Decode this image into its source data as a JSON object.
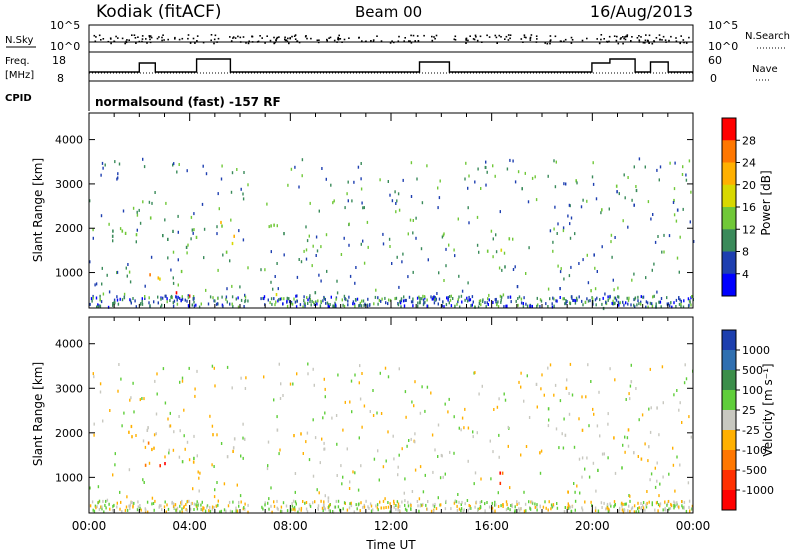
{
  "header": {
    "radar": "Kodiak (fitACF)",
    "beam": "Beam 00",
    "date": "16/Aug/2013"
  },
  "params": {
    "nsky_label": "N.Sky",
    "nsky_ticks": [
      "10^5",
      "10^0"
    ],
    "nsearch_label": "N.Search",
    "freq_label_top": "Freq.",
    "freq_label_unit": "[MHz]",
    "freq_ticks": [
      "18",
      "8"
    ],
    "nave_label": "Nave",
    "nave_ticks": [
      "60",
      "0"
    ],
    "cpid_label": "CPID",
    "cpid_value": "normalsound (fast) -157 RF"
  },
  "chart_data": [
    {
      "type": "heatmap",
      "name": "power",
      "ylabel": "Slant Range [km]",
      "xlabel": "",
      "yticks": [
        "1000",
        "2000",
        "3000",
        "4000"
      ],
      "ylim": [
        200,
        4600
      ],
      "xlim": [
        0,
        24
      ],
      "colorbar_label": "Power [dB]",
      "colorbar_ticks": [
        "28",
        "24",
        "20",
        "16",
        "12",
        "8",
        "4"
      ],
      "colorbar_colors": [
        "#ff0000",
        "#ff7700",
        "#ffb000",
        "#d8d800",
        "#70c838",
        "#3a8a5a",
        "#1e3fb0",
        "#0000ff"
      ],
      "regions": [
        {
          "x0": 0.9,
          "x1": 3.4,
          "y0": 1500,
          "y1": 2300,
          "level": 12
        },
        {
          "x0": 2.2,
          "x1": 3.2,
          "y0": 850,
          "y1": 1400,
          "level": 20
        },
        {
          "x0": 3.2,
          "x1": 4.5,
          "y0": 350,
          "y1": 650,
          "level": 24
        },
        {
          "x0": 3.5,
          "x1": 5.0,
          "y0": 1600,
          "y1": 2100,
          "level": 8
        },
        {
          "x0": 3.6,
          "x1": 4.3,
          "y0": 1000,
          "y1": 1300,
          "level": 12
        },
        {
          "x0": 5.0,
          "x1": 6.3,
          "y0": 1400,
          "y1": 2200,
          "level": 16
        },
        {
          "x0": 7.0,
          "x1": 8.5,
          "y0": 1800,
          "y1": 2200,
          "level": 8
        },
        {
          "x0": 7.0,
          "x1": 9.8,
          "y0": 400,
          "y1": 650,
          "level": 12
        },
        {
          "x0": 15.8,
          "x1": 16.6,
          "y0": 900,
          "y1": 1700,
          "level": 12
        },
        {
          "x0": 16.6,
          "x1": 24.0,
          "y0": 200,
          "y1": 3500,
          "level": 8
        }
      ]
    },
    {
      "type": "heatmap",
      "name": "velocity",
      "ylabel": "Slant Range [km]",
      "xlabel": "Time UT",
      "xticks": [
        "00:00",
        "04:00",
        "08:00",
        "12:00",
        "16:00",
        "20:00",
        "00:00"
      ],
      "yticks": [
        "1000",
        "2000",
        "3000",
        "4000"
      ],
      "ylim": [
        200,
        4600
      ],
      "xlim": [
        0,
        24
      ],
      "colorbar_label": "Velocity [m s⁻¹]",
      "colorbar_ticks": [
        "1000",
        "500",
        "100",
        "25",
        "-25",
        "-100",
        "-500",
        "-1000"
      ],
      "colorbar_colors": [
        "#1d3fae",
        "#2f6fb0",
        "#3b8e4a",
        "#5fce3a",
        "#c8c8c0",
        "#ffb000",
        "#ff7700",
        "#ff3000",
        "#ff0000"
      ],
      "regions": [
        {
          "x0": 0.9,
          "x1": 3.4,
          "y0": 1500,
          "y1": 2300,
          "level": -100
        },
        {
          "x0": 2.2,
          "x1": 3.2,
          "y0": 850,
          "y1": 1400,
          "level": -500
        },
        {
          "x0": 3.2,
          "x1": 4.5,
          "y0": 350,
          "y1": 650,
          "level": -100
        },
        {
          "x0": 3.6,
          "x1": 6.3,
          "y0": 1300,
          "y1": 2000,
          "level": 0
        },
        {
          "x0": 7.0,
          "x1": 8.5,
          "y0": 1800,
          "y1": 2200,
          "level": 0
        },
        {
          "x0": 7.0,
          "x1": 9.8,
          "y0": 400,
          "y1": 650,
          "level": -100
        },
        {
          "x0": 15.8,
          "x1": 16.6,
          "y0": 900,
          "y1": 1700,
          "level": -500
        },
        {
          "x0": 16.6,
          "x1": 24.0,
          "y0": 200,
          "y1": 3500,
          "level": 0
        }
      ]
    }
  ]
}
